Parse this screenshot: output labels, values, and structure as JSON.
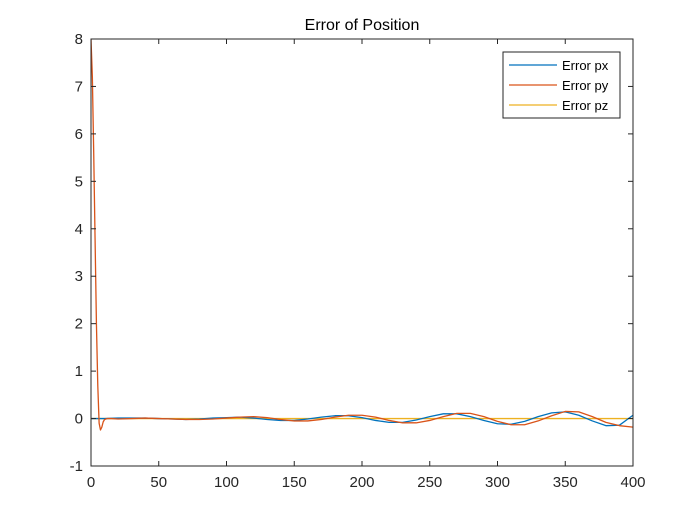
{
  "chart_data": {
    "type": "line",
    "title": "Error of Position",
    "xlabel": "",
    "ylabel": "",
    "xlim": [
      0,
      400
    ],
    "ylim": [
      -1,
      8
    ],
    "xticks": [
      0,
      50,
      100,
      150,
      200,
      250,
      300,
      350,
      400
    ],
    "yticks": [
      -1,
      0,
      1,
      2,
      3,
      4,
      5,
      6,
      7,
      8
    ],
    "grid": false,
    "legend_position": "top-right",
    "series": [
      {
        "name": "Error px",
        "color": "#0072BD",
        "x": [
          0,
          5,
          10,
          20,
          30,
          40,
          50,
          60,
          70,
          80,
          90,
          100,
          110,
          120,
          130,
          140,
          150,
          160,
          170,
          180,
          190,
          200,
          210,
          220,
          230,
          240,
          250,
          260,
          270,
          280,
          290,
          300,
          310,
          320,
          330,
          340,
          350,
          360,
          370,
          380,
          390,
          400
        ],
        "y": [
          0,
          0,
          0,
          0.01,
          0.01,
          0.01,
          0.0,
          -0.01,
          -0.02,
          -0.01,
          0.01,
          0.02,
          0.03,
          0.01,
          -0.02,
          -0.04,
          -0.04,
          -0.01,
          0.03,
          0.06,
          0.06,
          0.02,
          -0.04,
          -0.08,
          -0.08,
          -0.03,
          0.04,
          0.1,
          0.1,
          0.04,
          -0.04,
          -0.11,
          -0.12,
          -0.06,
          0.04,
          0.12,
          0.14,
          0.07,
          -0.05,
          -0.15,
          -0.14,
          0.07
        ]
      },
      {
        "name": "Error py",
        "color": "#D95319",
        "x": [
          0,
          1,
          2,
          3,
          4,
          5,
          6,
          7,
          8,
          9,
          10,
          12,
          15,
          20,
          30,
          40,
          50,
          60,
          70,
          80,
          90,
          100,
          110,
          120,
          130,
          140,
          150,
          160,
          170,
          180,
          190,
          200,
          210,
          220,
          230,
          240,
          250,
          260,
          270,
          280,
          290,
          300,
          310,
          320,
          330,
          340,
          350,
          360,
          370,
          380,
          390,
          400
        ],
        "y": [
          8.0,
          7.2,
          5.6,
          3.8,
          2.0,
          0.7,
          -0.1,
          -0.24,
          -0.18,
          -0.07,
          -0.02,
          0.0,
          0.0,
          -0.01,
          0.0,
          0.01,
          0.0,
          -0.01,
          -0.02,
          -0.02,
          -0.01,
          0.01,
          0.03,
          0.04,
          0.02,
          -0.02,
          -0.05,
          -0.05,
          -0.02,
          0.03,
          0.07,
          0.07,
          0.03,
          -0.04,
          -0.09,
          -0.09,
          -0.04,
          0.04,
          0.11,
          0.11,
          0.04,
          -0.06,
          -0.13,
          -0.13,
          -0.05,
          0.06,
          0.15,
          0.14,
          0.04,
          -0.08,
          -0.15,
          -0.18
        ]
      },
      {
        "name": "Error pz",
        "color": "#EDB120",
        "x": [
          0,
          400
        ],
        "y": [
          0,
          0
        ]
      }
    ]
  }
}
